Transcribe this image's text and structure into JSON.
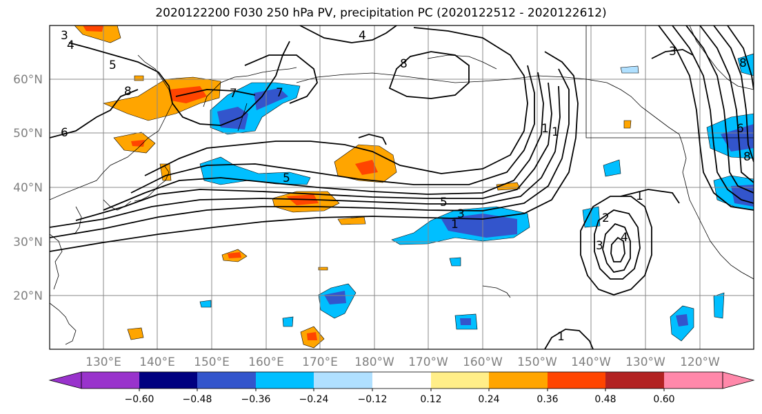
{
  "title": "2020122200 F030 250 hPa PV, precipitation PC (2020122512 - 2020122612)",
  "map": {
    "lat_labels": [
      "60°N",
      "50°N",
      "40°N",
      "30°N",
      "20°N"
    ],
    "lon_labels": [
      "130°E",
      "140°E",
      "150°E",
      "160°E",
      "170°E",
      "180°W",
      "170°W",
      "160°W",
      "150°W",
      "140°W",
      "130°W",
      "120°W"
    ],
    "contour_labels": [
      "3",
      "4",
      "4",
      "5",
      "5",
      "6",
      "7",
      "7",
      "8",
      "8",
      "1",
      "5",
      "3",
      "1",
      "1",
      "2",
      "3",
      "4",
      "1",
      "1",
      "3",
      "8",
      "6",
      "8"
    ]
  },
  "colorbar": {
    "tick_labels": [
      "−0.60",
      "−0.48",
      "−0.36",
      "−0.24",
      "−0.12",
      "0.12",
      "0.24",
      "0.36",
      "0.48",
      "0.60"
    ],
    "colors": [
      "#9933cc",
      "#000080",
      "#3355cc",
      "#00bfff",
      "#b0e0ff",
      "#ffffff",
      "#ffee88",
      "#ffa500",
      "#ff4500",
      "#b22222",
      "#ff88aa"
    ]
  }
}
